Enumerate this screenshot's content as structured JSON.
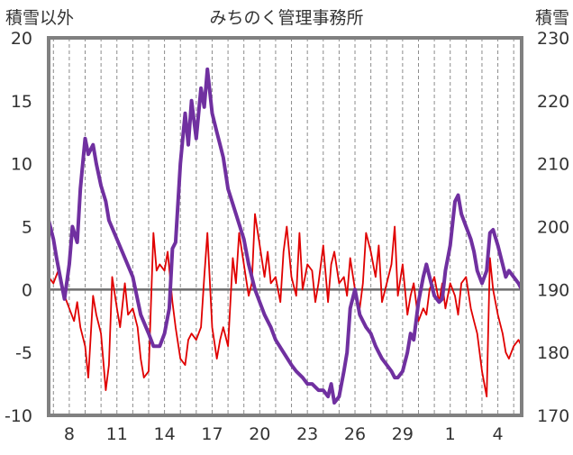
{
  "chart_data": {
    "type": "line",
    "title": "みちのく管理事務所",
    "left_axis_label": "積雪以外",
    "right_axis_label": "積雪",
    "x_tick_labels": [
      "8",
      "11",
      "14",
      "17",
      "20",
      "23",
      "26",
      "29",
      "1",
      "4"
    ],
    "x_tick_days": [
      8,
      11,
      14,
      17,
      20,
      23,
      26,
      29,
      32,
      35
    ],
    "x_range": [
      6.7,
      36.5
    ],
    "y_left_ticks": [
      "20",
      "15",
      "10",
      "5",
      "0",
      "-5",
      "-10"
    ],
    "y_right_ticks": [
      "230",
      "220",
      "210",
      "200",
      "190",
      "180",
      "170"
    ],
    "y_left_range": [
      -10,
      20
    ],
    "y_right_range": [
      170,
      230
    ],
    "grid": {
      "vertical_dashed": true,
      "zero_line": true
    },
    "series": [
      {
        "axis": "left",
        "color": "#e00000",
        "x": [
          6.7,
          7.0,
          7.3,
          7.5,
          7.7,
          8.0,
          8.3,
          8.5,
          8.7,
          9.0,
          9.2,
          9.5,
          9.7,
          10.0,
          10.3,
          10.5,
          10.7,
          11.0,
          11.2,
          11.5,
          11.7,
          12.0,
          12.3,
          12.5,
          12.7,
          13.0,
          13.3,
          13.5,
          13.7,
          14.0,
          14.2,
          14.5,
          14.7,
          15.0,
          15.3,
          15.5,
          15.7,
          16.0,
          16.3,
          16.5,
          16.7,
          17.0,
          17.3,
          17.5,
          17.7,
          18.0,
          18.3,
          18.5,
          18.7,
          19.0,
          19.3,
          19.5,
          19.7,
          20.0,
          20.3,
          20.5,
          20.7,
          21.0,
          21.3,
          21.5,
          21.7,
          22.0,
          22.3,
          22.5,
          22.7,
          23.0,
          23.3,
          23.5,
          23.7,
          24.0,
          24.3,
          24.5,
          24.7,
          25.0,
          25.3,
          25.5,
          25.7,
          26.0,
          26.3,
          26.5,
          26.7,
          27.0,
          27.3,
          27.5,
          27.7,
          28.0,
          28.3,
          28.5,
          28.7,
          29.0,
          29.3,
          29.5,
          29.7,
          30.0,
          30.3,
          30.5,
          30.7,
          31.0,
          31.3,
          31.5,
          31.7,
          32.0,
          32.3,
          32.5,
          32.7,
          33.0,
          33.3,
          33.5,
          33.7,
          34.0,
          34.3,
          34.5,
          34.7,
          35.0,
          35.3,
          35.5,
          35.7,
          36.0,
          36.3,
          36.5
        ],
        "y": [
          1.0,
          0.5,
          1.5,
          0.8,
          -0.5,
          -1.5,
          -2.5,
          -1.0,
          -3.0,
          -4.5,
          -7.0,
          -0.5,
          -2.0,
          -3.5,
          -8.0,
          -6.0,
          1.0,
          -1.5,
          -3.0,
          0.5,
          -2.0,
          -1.5,
          -3.0,
          -5.5,
          -7.0,
          -6.5,
          4.5,
          1.5,
          2.0,
          1.5,
          3.0,
          -1.0,
          -3.0,
          -5.5,
          -6.0,
          -4.0,
          -3.5,
          -4.0,
          -3.0,
          1.0,
          4.5,
          -3.0,
          -5.5,
          -4.0,
          -3.0,
          -4.5,
          2.5,
          0.5,
          4.5,
          2.0,
          -0.5,
          0.5,
          6.0,
          3.5,
          1.0,
          3.0,
          0.5,
          1.0,
          -1.0,
          3.0,
          5.0,
          1.0,
          -0.5,
          4.5,
          0.0,
          2.0,
          1.5,
          -1.0,
          0.5,
          3.5,
          -1.0,
          2.0,
          3.0,
          0.5,
          1.0,
          -0.5,
          2.5,
          0.0,
          -1.5,
          0.5,
          4.5,
          3.0,
          1.0,
          3.5,
          -1.0,
          0.5,
          2.0,
          5.0,
          -0.5,
          2.0,
          -2.0,
          -0.5,
          0.5,
          -2.5,
          -1.5,
          -2.0,
          0.0,
          1.0,
          -1.0,
          0.5,
          -1.5,
          0.5,
          -0.5,
          -2.0,
          0.5,
          1.0,
          -1.5,
          -2.5,
          -3.5,
          -6.5,
          -8.5,
          2.5,
          0.0,
          -2.0,
          -3.5,
          -5.0,
          -5.5,
          -4.5,
          -4.0,
          -4.5
        ]
      },
      {
        "axis": "right",
        "color": "#7030a0",
        "x": [
          6.7,
          7.0,
          7.2,
          7.5,
          7.7,
          8.0,
          8.2,
          8.5,
          8.7,
          9.0,
          9.2,
          9.5,
          9.7,
          10.0,
          10.3,
          10.5,
          11.0,
          11.5,
          12.0,
          12.5,
          13.0,
          13.3,
          13.7,
          14.0,
          14.3,
          14.5,
          14.7,
          15.0,
          15.3,
          15.5,
          15.7,
          16.0,
          16.3,
          16.5,
          16.7,
          17.0,
          17.3,
          17.5,
          17.7,
          18.0,
          18.5,
          19.0,
          19.3,
          19.7,
          20.0,
          20.3,
          20.5,
          20.7,
          21.0,
          21.5,
          22.0,
          22.3,
          22.7,
          23.0,
          23.3,
          23.7,
          24.0,
          24.3,
          24.5,
          24.7,
          25.0,
          25.3,
          25.5,
          25.7,
          26.0,
          26.3,
          26.5,
          26.7,
          27.0,
          27.3,
          27.5,
          27.7,
          28.0,
          28.3,
          28.5,
          28.7,
          29.0,
          29.3,
          29.5,
          29.7,
          30.0,
          30.3,
          30.5,
          30.7,
          31.0,
          31.3,
          31.5,
          31.7,
          32.0,
          32.3,
          32.5,
          32.7,
          33.0,
          33.3,
          33.5,
          33.7,
          34.0,
          34.3,
          34.5,
          34.7,
          35.0,
          35.3,
          35.5,
          35.7,
          36.0,
          36.3,
          36.5
        ],
        "y": [
          201.0,
          198.0,
          195.0,
          191.0,
          188.5,
          194.0,
          200.0,
          197.5,
          206.0,
          214.0,
          211.5,
          213.0,
          210.0,
          206.5,
          204.0,
          201.0,
          198.0,
          195.0,
          192.0,
          186.0,
          183.0,
          181.0,
          181.0,
          183.0,
          187.0,
          196.5,
          197.5,
          210.0,
          218.0,
          213.0,
          220.0,
          214.0,
          222.0,
          219.0,
          225.0,
          218.0,
          215.0,
          213.0,
          211.0,
          206.0,
          202.0,
          198.0,
          194.0,
          190.0,
          188.0,
          186.0,
          185.0,
          184.0,
          182.0,
          180.0,
          178.0,
          177.0,
          176.0,
          175.0,
          175.0,
          174.0,
          174.0,
          173.0,
          175.0,
          172.0,
          173.0,
          177.0,
          180.0,
          187.0,
          190.0,
          186.0,
          185.0,
          184.0,
          183.0,
          181.0,
          180.0,
          179.0,
          178.0,
          177.0,
          176.0,
          176.0,
          177.0,
          180.0,
          183.0,
          182.0,
          188.0,
          192.0,
          194.0,
          192.0,
          189.0,
          188.0,
          188.5,
          193.0,
          197.0,
          204.0,
          205.0,
          202.0,
          200.0,
          198.0,
          196.0,
          193.0,
          191.0,
          193.0,
          199.0,
          199.5,
          197.0,
          194.0,
          192.0,
          193.0,
          192.0,
          191.0,
          190.0
        ]
      }
    ]
  }
}
